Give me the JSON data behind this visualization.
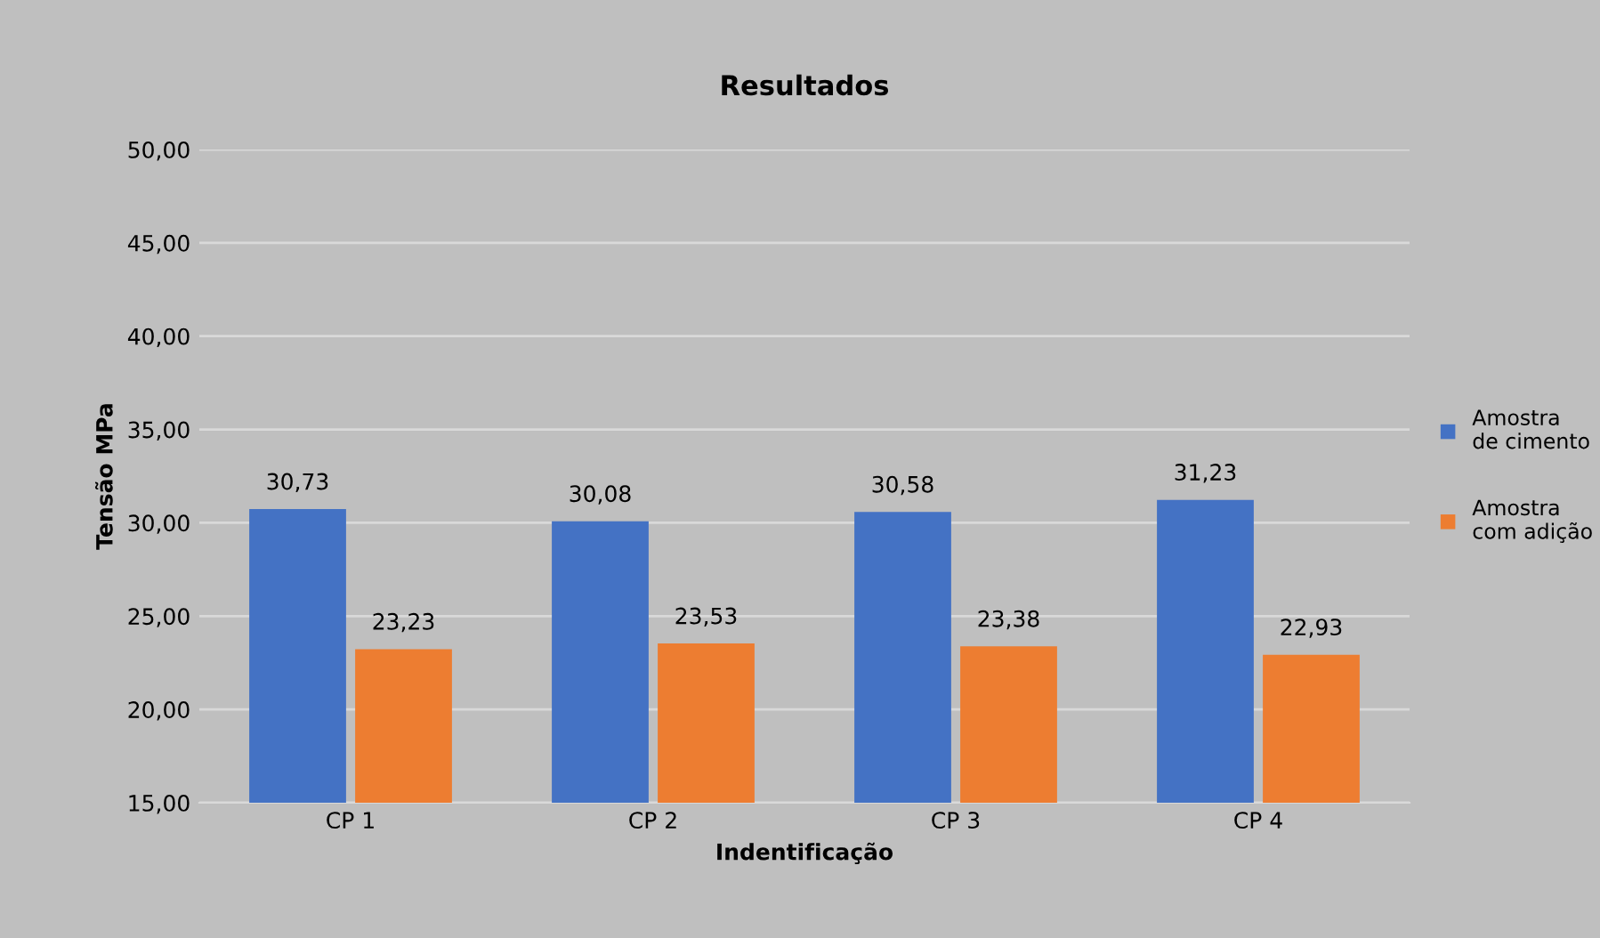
{
  "chart_data": {
    "type": "bar",
    "title": "Resultados",
    "xlabel": "Indentificação",
    "ylabel": "Tensão MPa",
    "categories": [
      "CP 1",
      "CP 2",
      "CP 3",
      "CP 4"
    ],
    "series": [
      {
        "name": "Amostra\nde cimento",
        "color": "#4472c4",
        "values": [
          30.73,
          30.08,
          30.58,
          31.23
        ],
        "value_labels": [
          "30,73",
          "30,08",
          "30,58",
          "31,23"
        ]
      },
      {
        "name": "Amostra\ncom adição",
        "color": "#ed7d31",
        "values": [
          23.23,
          23.53,
          23.38,
          22.93
        ],
        "value_labels": [
          "23,23",
          "23,53",
          "23,38",
          "22,93"
        ]
      }
    ],
    "ylim": [
      15,
      50
    ],
    "yticks": [
      {
        "value": 15,
        "label": "15,00"
      },
      {
        "value": 20,
        "label": "20,00"
      },
      {
        "value": 25,
        "label": "25,00"
      },
      {
        "value": 30,
        "label": "30,00"
      },
      {
        "value": 35,
        "label": "35,00"
      },
      {
        "value": 40,
        "label": "40,00"
      },
      {
        "value": 45,
        "label": "45,00"
      },
      {
        "value": 50,
        "label": "50,00"
      }
    ],
    "grid": "y",
    "legend": "right"
  }
}
